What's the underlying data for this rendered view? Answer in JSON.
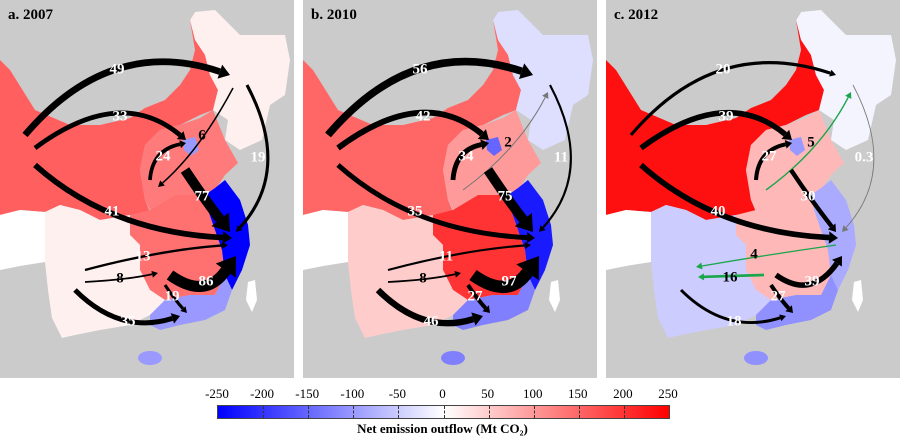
{
  "panels": [
    {
      "title": "a. 2007",
      "region_colors": {
        "northeast": "#fff0f0",
        "north_west": "#ff5f5f",
        "north_central": "#ff7a7a",
        "beijing": "#9999ff",
        "east_coast": "#0000ff",
        "central": "#ff7070",
        "southwest": "#fff0f0",
        "south_coast": "#9999ff",
        "hainan": "#9999ff",
        "tibet_strip": "#ffffff",
        "taiwan": "#ffffff"
      },
      "flows": [
        {
          "id": "nw_ne",
          "value": "49",
          "color": "#000000"
        },
        {
          "id": "nw_bj",
          "value": "33",
          "color": "#000000"
        },
        {
          "id": "nw_east",
          "value": "41",
          "color": "#000000"
        },
        {
          "id": "central_bj",
          "value": "24",
          "color": "#000000"
        },
        {
          "id": "ne_central",
          "value": "6",
          "color": "#000000"
        },
        {
          "id": "ne_east",
          "value": "19",
          "color": "#000000"
        },
        {
          "id": "north_east",
          "value": "77",
          "color": "#000000"
        },
        {
          "id": "sw_east",
          "value": "13",
          "color": "#000000"
        },
        {
          "id": "sw_cs",
          "value": "8",
          "color": "#000000"
        },
        {
          "id": "cs_east",
          "value": "86",
          "color": "#000000"
        },
        {
          "id": "cs_sc",
          "value": "19",
          "color": "#000000"
        },
        {
          "id": "sw_sc",
          "value": "35",
          "color": "#000000"
        }
      ]
    },
    {
      "title": "b. 2010",
      "region_colors": {
        "northeast": "#dedeff",
        "north_west": "#ff6666",
        "north_central": "#ff9a9a",
        "beijing": "#6666ff",
        "east_coast": "#1a1aff",
        "central": "#ff3333",
        "southwest": "#ffcccc",
        "south_coast": "#8080ff",
        "hainan": "#8080ff",
        "tibet_strip": "#ffffff",
        "taiwan": "#ffffff"
      },
      "flows": [
        {
          "id": "nw_ne",
          "value": "56",
          "color": "#000000"
        },
        {
          "id": "nw_bj",
          "value": "42",
          "color": "#000000"
        },
        {
          "id": "nw_east",
          "value": "35",
          "color": "#000000"
        },
        {
          "id": "central_bj",
          "value": "34",
          "color": "#000000"
        },
        {
          "id": "central_ne",
          "value": "2",
          "color": "#777777"
        },
        {
          "id": "ne_east",
          "value": "11",
          "color": "#000000"
        },
        {
          "id": "north_east",
          "value": "75",
          "color": "#000000"
        },
        {
          "id": "sw_east",
          "value": "11",
          "color": "#000000"
        },
        {
          "id": "sw_cs",
          "value": "8",
          "color": "#000000"
        },
        {
          "id": "cs_east",
          "value": "97",
          "color": "#000000"
        },
        {
          "id": "cs_sc",
          "value": "27",
          "color": "#000000"
        },
        {
          "id": "sw_sc",
          "value": "46",
          "color": "#000000"
        }
      ]
    },
    {
      "title": "c. 2012",
      "region_colors": {
        "northeast": "#f4f4ff",
        "north_west": "#ff1010",
        "north_central": "#ffb8b8",
        "beijing": "#9999ff",
        "east_coast": "#aaaaff",
        "central": "#ffb8b8",
        "southwest": "#ccccff",
        "south_coast": "#9090ff",
        "hainan": "#9090ff",
        "tibet_strip": "#ffffff",
        "taiwan": "#ffffff"
      },
      "flows": [
        {
          "id": "nw_ne",
          "value": "20",
          "color": "#000000"
        },
        {
          "id": "nw_bj",
          "value": "39",
          "color": "#000000"
        },
        {
          "id": "nw_east",
          "value": "40",
          "color": "#000000"
        },
        {
          "id": "central_bj",
          "value": "27",
          "color": "#000000"
        },
        {
          "id": "central_ne",
          "value": "5",
          "color": "#1aa64a"
        },
        {
          "id": "ne_east",
          "value": "0.3",
          "color": "#777777"
        },
        {
          "id": "north_east",
          "value": "30",
          "color": "#000000"
        },
        {
          "id": "east_sw",
          "value": "4",
          "color": "#1aa64a"
        },
        {
          "id": "cs_sw",
          "value": "16",
          "color": "#1aa64a"
        },
        {
          "id": "cs_east",
          "value": "39",
          "color": "#000000"
        },
        {
          "id": "cs_sc",
          "value": "27",
          "color": "#000000"
        },
        {
          "id": "sw_sc",
          "value": "18",
          "color": "#000000"
        }
      ]
    }
  ],
  "colorbar": {
    "ticks": [
      "-250",
      "-200",
      "-150",
      "-100",
      "-50",
      "0",
      "50",
      "100",
      "150",
      "200",
      "250"
    ],
    "range": [
      -250,
      250
    ],
    "low_color": "#0000ff",
    "mid_color": "#ffffff",
    "high_color": "#ff0000",
    "title": "Net emission outflow (Mt CO₂)"
  }
}
